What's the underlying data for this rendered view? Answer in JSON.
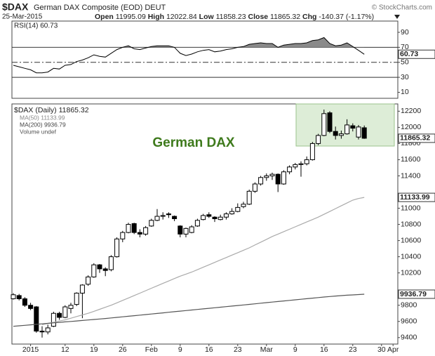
{
  "header": {
    "symbol": "$DAX",
    "name": "German DAX Composite (EOD) DEUT",
    "date": "25-Mar-2015",
    "copyright": "© StockCharts.com",
    "quote": [
      {
        "label": "Open",
        "value": "11995.09"
      },
      {
        "label": "High",
        "value": "12022.84"
      },
      {
        "label": "Low",
        "value": "11858.23"
      },
      {
        "label": "Close",
        "value": "11865.32"
      },
      {
        "label": "Chg",
        "value": "-140.37 (-1.17%)"
      }
    ]
  },
  "chart_data": {
    "type": "candlestick",
    "annotation": "German DAX",
    "legend_note": "Volume undef",
    "categories": [
      null,
      null,
      null,
      "2015",
      null,
      null,
      null,
      null,
      null,
      "12",
      null,
      null,
      null,
      null,
      "19",
      null,
      null,
      null,
      null,
      "26",
      null,
      null,
      null,
      null,
      "Feb",
      null,
      null,
      null,
      null,
      "9",
      null,
      null,
      null,
      null,
      "16",
      null,
      null,
      null,
      null,
      "23",
      null,
      null,
      null,
      null,
      "Mar",
      null,
      null,
      null,
      null,
      "9",
      null,
      null,
      null,
      null,
      "16",
      null,
      null,
      null,
      null,
      "23",
      null,
      null,
      null,
      null,
      "30",
      null,
      "Apr"
    ],
    "ylim": [
      9320,
      12290
    ],
    "yticks": [
      9400,
      9600,
      9800,
      10200,
      10400,
      10600,
      10800,
      11000,
      11400,
      11600,
      11800,
      12000,
      12200
    ],
    "series": [
      {
        "name": "$DAX (Daily) 11865.32",
        "color": "#000000",
        "last_label": "11865.32",
        "open": [
          9880,
          9920,
          9880,
          9800,
          9780,
          9480,
          9470,
          9540,
          9700,
          9650,
          9760,
          9810,
          9950,
          10060,
          10150,
          10300,
          10250,
          10240,
          10400,
          10620,
          10700,
          10810,
          10700,
          10680,
          10780,
          10850,
          10900,
          10930,
          10900,
          10780,
          10680,
          10700,
          10780,
          10860,
          10920,
          10890,
          10860,
          10890,
          10930,
          10960,
          11020,
          11050,
          11210,
          11300,
          11380,
          11400,
          11420,
          11300,
          11450,
          11510,
          11540,
          11550,
          11600,
          11800,
          11900,
          12180,
          11950,
          11900,
          11920,
          12020,
          11880,
          11995.09,
          null,
          null,
          null,
          null,
          null
        ],
        "high": [
          9950,
          9940,
          9900,
          9830,
          9790,
          9540,
          9560,
          9720,
          9720,
          9800,
          9830,
          9960,
          10060,
          10170,
          10320,
          10310,
          10270,
          10420,
          10640,
          10720,
          10820,
          10820,
          10740,
          10780,
          10870,
          10990,
          10950,
          10950,
          10910,
          10790,
          10760,
          10790,
          10870,
          10930,
          10950,
          10900,
          10920,
          10950,
          11000,
          11060,
          11080,
          11230,
          11320,
          11400,
          11430,
          11440,
          11430,
          11470,
          11530,
          11560,
          11580,
          11640,
          11820,
          11920,
          12220,
          12200,
          12010,
          11960,
          12100,
          12050,
          12030,
          12022.84,
          null,
          null,
          null,
          null,
          null
        ],
        "low": [
          9870,
          9860,
          9780,
          9740,
          9460,
          9400,
          9440,
          9530,
          9620,
          9640,
          9700,
          9790,
          9640,
          10040,
          10140,
          10200,
          10160,
          10220,
          10390,
          10580,
          10690,
          10680,
          10640,
          10660,
          10770,
          10840,
          10860,
          10880,
          10840,
          10640,
          10640,
          10690,
          10770,
          10850,
          10880,
          10830,
          10850,
          10860,
          10920,
          10950,
          11000,
          11040,
          11190,
          11280,
          11340,
          11350,
          11200,
          11290,
          11420,
          11480,
          11390,
          11530,
          11590,
          11780,
          11890,
          11930,
          11850,
          11860,
          11910,
          11950,
          11850,
          11858.23,
          null,
          null,
          null,
          null,
          null
        ],
        "close": [
          9930,
          9880,
          9800,
          9760,
          9480,
          9470,
          9520,
          9700,
          9650,
          9780,
          9800,
          9950,
          10050,
          10150,
          10300,
          10250,
          10230,
          10400,
          10620,
          10700,
          10800,
          10700,
          10680,
          10760,
          10850,
          10900,
          10910,
          10920,
          10870,
          10680,
          10750,
          10770,
          10850,
          10910,
          10900,
          10870,
          10890,
          10930,
          10960,
          11010,
          11050,
          11210,
          11300,
          11380,
          11400,
          11420,
          11300,
          11450,
          11510,
          11540,
          11550,
          11600,
          11800,
          11900,
          12170,
          11950,
          11900,
          11920,
          12030,
          11990,
          12005,
          11865.32,
          null,
          null,
          null,
          null,
          null
        ]
      },
      {
        "name": "MA(50) 11133.99",
        "color": "#aaaaaa",
        "last_label": "11133.99",
        "values": [
          null,
          null,
          null,
          null,
          null,
          9560,
          9575,
          9590,
          9605,
          9620,
          9640,
          9660,
          9680,
          9700,
          9725,
          9750,
          9775,
          9800,
          9830,
          9860,
          9890,
          9920,
          9950,
          9980,
          10010,
          10040,
          10070,
          10100,
          10130,
          10160,
          10185,
          10210,
          10240,
          10270,
          10300,
          10330,
          10360,
          10390,
          10420,
          10450,
          10480,
          10510,
          10545,
          10580,
          10615,
          10650,
          10680,
          10710,
          10740,
          10770,
          10800,
          10830,
          10860,
          10890,
          10925,
          10960,
          10995,
          11030,
          11065,
          11100,
          11120,
          11133.99,
          null,
          null,
          null,
          null,
          null
        ]
      },
      {
        "name": "MA(200) 9936.79",
        "color": "#555555",
        "last_label": "9936.79",
        "values": [
          9540,
          9546,
          9552,
          9558,
          9564,
          9570,
          9576,
          9582,
          9588,
          9594,
          9600,
          9606,
          9612,
          9618,
          9624,
          9630,
          9636,
          9643,
          9650,
          9657,
          9664,
          9671,
          9678,
          9685,
          9692,
          9699,
          9706,
          9713,
          9720,
          9727,
          9734,
          9741,
          9748,
          9755,
          9762,
          9769,
          9776,
          9783,
          9790,
          9797,
          9804,
          9811,
          9818,
          9825,
          9832,
          9839,
          9846,
          9853,
          9860,
          9867,
          9874,
          9881,
          9888,
          9895,
          9902,
          9908,
          9914,
          9919,
          9924,
          9928,
          9932,
          9936.79,
          null,
          null,
          null,
          null,
          null
        ]
      }
    ],
    "rsi": {
      "title": "RSI(14) 60.73",
      "last_label": "60.73",
      "color": "#000000",
      "ylim": [
        2,
        105
      ],
      "yticks": [
        10,
        30,
        50,
        70,
        90
      ],
      "levels": [
        {
          "value": 70,
          "style": "solid"
        },
        {
          "value": 50,
          "style": "dashdot"
        },
        {
          "value": 30,
          "style": "solid"
        }
      ],
      "overbought_fill": "#8a8a8a",
      "values": [
        46,
        44,
        42,
        40,
        36,
        36,
        37,
        42,
        41,
        46,
        47,
        51,
        53,
        56,
        60,
        58,
        57,
        62,
        67,
        70,
        72,
        68,
        67,
        69,
        71,
        72,
        72,
        72,
        70,
        62,
        59,
        61,
        64,
        66,
        67,
        64,
        65,
        67,
        68,
        70,
        71,
        74,
        75,
        76,
        75,
        75,
        70,
        73,
        74,
        75,
        75,
        76,
        79,
        80,
        83,
        75,
        72,
        73,
        76,
        71,
        66,
        60.73,
        null,
        null,
        null,
        null,
        null
      ]
    }
  }
}
